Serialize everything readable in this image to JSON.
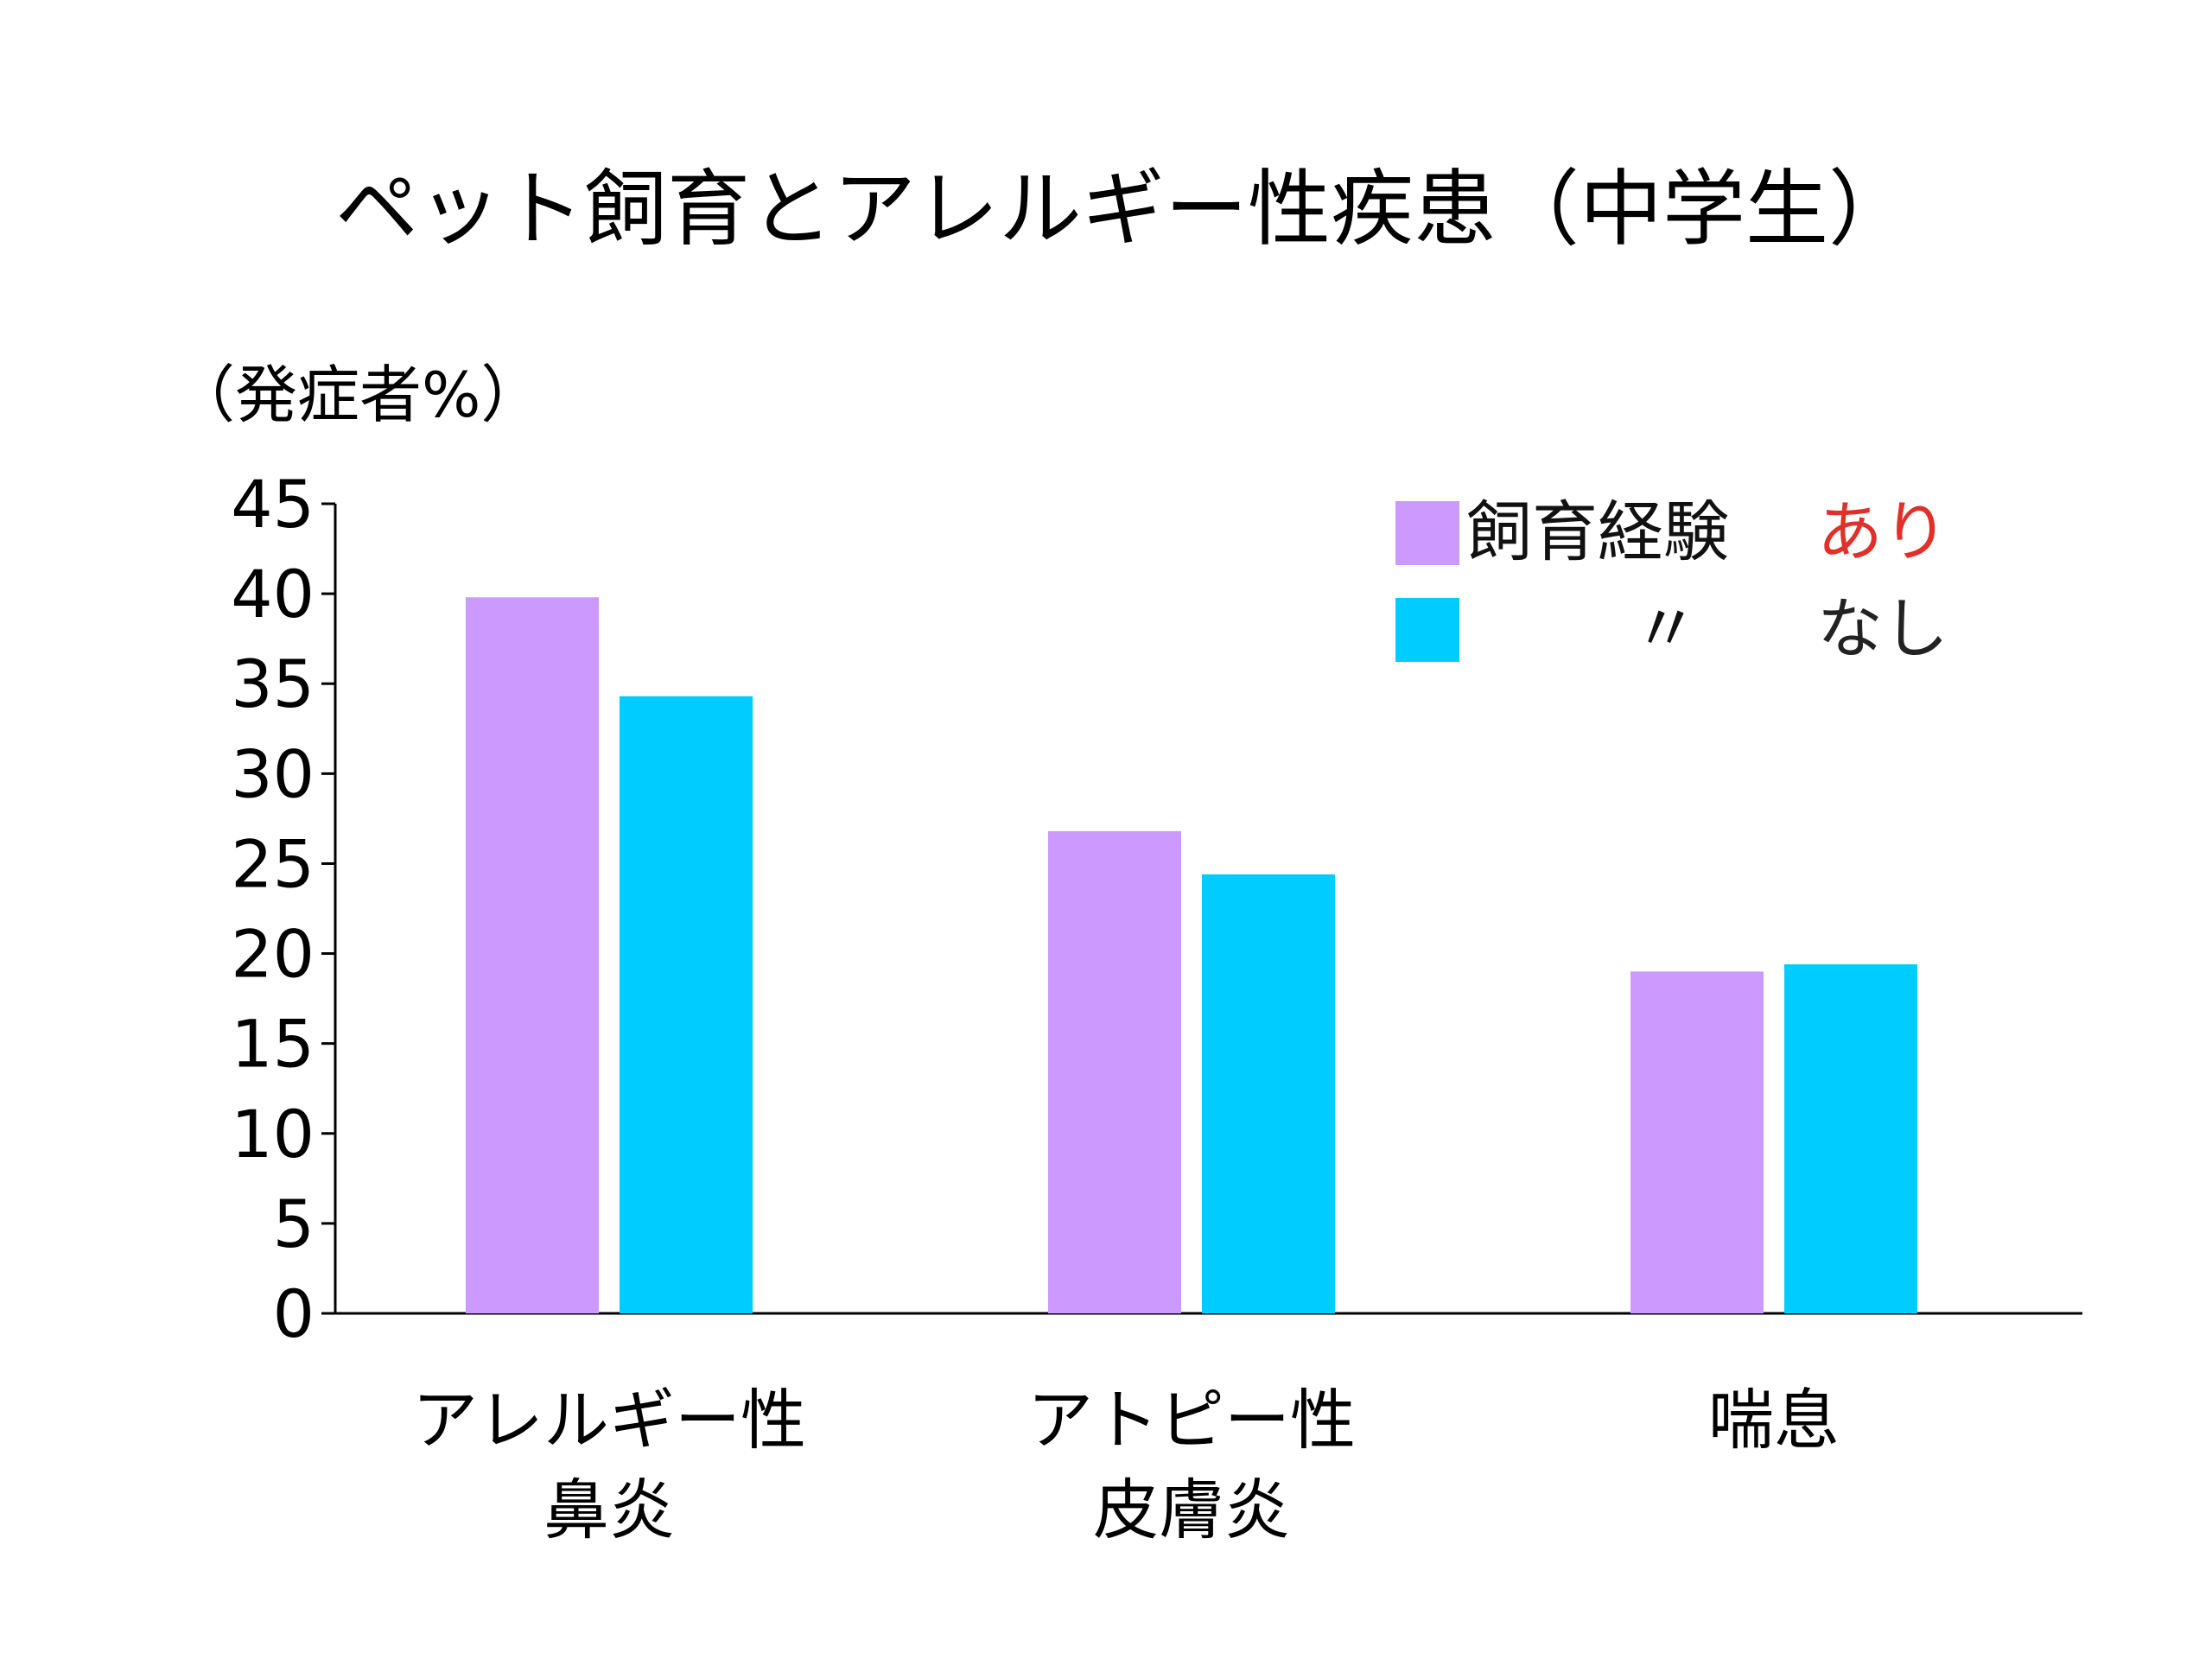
{
  "chart_data": {
    "type": "bar",
    "title": "ペット飼育とアレルギー性疾患（中学生）",
    "ylabel": "（発症者%）",
    "ylim": [
      0,
      45
    ],
    "yticks": [
      0,
      5,
      10,
      15,
      20,
      25,
      30,
      35,
      40,
      45
    ],
    "grid": false,
    "legend_position": "top-right",
    "categories": [
      [
        "アレルギー性",
        "鼻炎"
      ],
      [
        "アトピー性",
        "皮膚炎"
      ],
      [
        "喘息"
      ]
    ],
    "series": [
      {
        "name": "飼育経験 あり",
        "label_main": "飼育経験",
        "label_suffix": "あり",
        "color": "#cc99ff",
        "suffix_color": "#e0302a",
        "values": [
          39.8,
          26.8,
          19.0
        ]
      },
      {
        "name": "〃 なし",
        "label_main": "〃",
        "label_suffix": "なし",
        "color": "#00ccff",
        "suffix_color": "#222222",
        "values": [
          34.3,
          24.4,
          19.4
        ]
      }
    ]
  }
}
